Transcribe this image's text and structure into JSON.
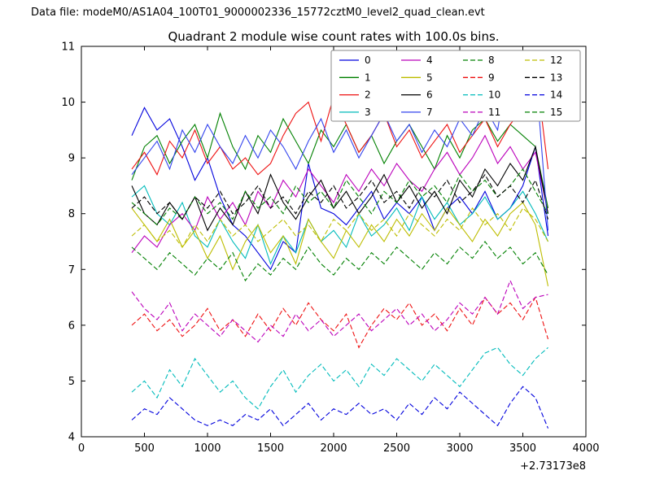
{
  "header": {
    "datafile_label": "Data file: modeM0/AS1A04_100T01_9000002336_15772cztM0_level2_quad_clean.evt"
  },
  "chart_data": {
    "type": "line",
    "title": "Quadrant 2 module wise count rates with 100.0s bins.",
    "xlabel": "",
    "ylabel": "",
    "xlim": [
      0,
      4000
    ],
    "ylim": [
      4,
      11
    ],
    "xticks": [
      0,
      500,
      1000,
      1500,
      2000,
      2500,
      3000,
      3500,
      4000
    ],
    "yticks": [
      4,
      5,
      6,
      7,
      8,
      9,
      10,
      11
    ],
    "x_offset_text": "+2.73173e8",
    "grid": false,
    "legend": {
      "location": "upper right",
      "columns": 4
    },
    "axis_color": "#000000",
    "x": [
      400,
      500,
      600,
      700,
      800,
      900,
      1000,
      1100,
      1200,
      1300,
      1400,
      1500,
      1600,
      1700,
      1800,
      1900,
      2000,
      2100,
      2200,
      2300,
      2400,
      2500,
      2600,
      2700,
      2800,
      2900,
      3000,
      3100,
      3200,
      3300,
      3400,
      3500,
      3600,
      3700
    ],
    "series": [
      {
        "name": "0",
        "color": "#0000dd",
        "style": "solid",
        "values": [
          9.4,
          9.9,
          9.5,
          9.7,
          9.2,
          8.6,
          9.0,
          8.3,
          7.8,
          7.6,
          7.3,
          7.0,
          7.5,
          7.3,
          8.9,
          8.1,
          8.0,
          7.8,
          8.1,
          8.4,
          7.9,
          8.2,
          8.0,
          8.3,
          7.7,
          8.1,
          8.3,
          8.0,
          8.4,
          7.9,
          8.1,
          8.5,
          9.2,
          7.6
        ]
      },
      {
        "name": "1",
        "color": "#008000",
        "style": "solid",
        "values": [
          8.6,
          9.2,
          9.4,
          8.9,
          9.3,
          9.6,
          9.0,
          9.8,
          9.2,
          8.8,
          9.4,
          9.1,
          9.7,
          9.3,
          8.9,
          9.5,
          9.2,
          9.6,
          9.1,
          9.4,
          8.9,
          9.3,
          9.6,
          9.2,
          8.8,
          9.4,
          9.0,
          9.5,
          9.7,
          9.3,
          9.6,
          9.4,
          9.2,
          8.1
        ]
      },
      {
        "name": "2",
        "color": "#ee1111",
        "style": "solid",
        "values": [
          8.8,
          9.1,
          8.7,
          9.3,
          9.0,
          9.5,
          8.9,
          9.2,
          8.8,
          9.0,
          8.7,
          8.9,
          9.4,
          9.8,
          10.0,
          9.3,
          10.1,
          9.6,
          9.1,
          9.4,
          9.8,
          9.2,
          9.5,
          9.0,
          9.3,
          9.6,
          9.1,
          9.4,
          9.7,
          9.2,
          9.6,
          9.9,
          10.65,
          8.8
        ]
      },
      {
        "name": "3",
        "color": "#00bbbb",
        "style": "solid",
        "values": [
          8.3,
          8.5,
          8.0,
          7.8,
          8.2,
          7.6,
          7.4,
          7.9,
          7.5,
          7.2,
          7.8,
          7.1,
          7.6,
          7.3,
          7.9,
          7.5,
          7.7,
          7.4,
          8.0,
          7.6,
          7.8,
          8.1,
          7.7,
          8.3,
          7.9,
          8.2,
          7.8,
          8.0,
          8.3,
          7.9,
          8.1,
          8.4,
          8.0,
          7.5
        ]
      },
      {
        "name": "4",
        "color": "#bb00bb",
        "style": "solid",
        "values": [
          7.3,
          7.6,
          7.4,
          7.8,
          8.0,
          7.7,
          8.3,
          7.9,
          8.2,
          7.8,
          8.4,
          8.1,
          8.6,
          8.3,
          8.8,
          8.5,
          8.2,
          8.7,
          8.4,
          8.8,
          8.5,
          8.9,
          8.6,
          8.4,
          8.8,
          9.1,
          8.7,
          9.0,
          9.4,
          8.9,
          9.2,
          8.8,
          9.1,
          8.0
        ]
      },
      {
        "name": "5",
        "color": "#bdbd00",
        "style": "solid",
        "values": [
          8.1,
          7.8,
          7.5,
          7.9,
          7.4,
          7.7,
          7.2,
          7.6,
          7.0,
          7.5,
          7.8,
          7.3,
          7.6,
          7.1,
          7.9,
          7.5,
          7.2,
          7.7,
          7.4,
          7.8,
          7.5,
          7.9,
          7.6,
          8.0,
          7.7,
          8.1,
          7.8,
          7.5,
          7.9,
          7.6,
          8.0,
          8.2,
          7.8,
          6.7
        ]
      },
      {
        "name": "6",
        "color": "#000000",
        "style": "solid",
        "values": [
          8.5,
          8.0,
          7.8,
          8.2,
          7.9,
          8.3,
          7.7,
          8.1,
          7.8,
          8.4,
          8.0,
          8.7,
          8.2,
          7.9,
          8.3,
          8.6,
          8.1,
          8.4,
          8.0,
          8.3,
          8.7,
          8.2,
          8.5,
          8.1,
          8.4,
          8.0,
          8.6,
          8.3,
          8.8,
          8.5,
          8.9,
          8.6,
          9.2,
          8.0
        ]
      },
      {
        "name": "7",
        "color": "#3344ee",
        "style": "solid",
        "values": [
          8.7,
          9.0,
          9.3,
          8.8,
          9.5,
          9.1,
          9.6,
          9.2,
          8.9,
          9.4,
          9.0,
          9.5,
          9.2,
          8.8,
          9.3,
          9.7,
          9.1,
          9.5,
          9.0,
          9.4,
          9.8,
          9.3,
          9.6,
          9.1,
          9.5,
          9.2,
          9.7,
          9.4,
          9.9,
          9.5,
          10.85,
          10.0,
          10.6,
          7.7
        ]
      },
      {
        "name": "8",
        "color": "#008000",
        "style": "dashed",
        "values": [
          8.2,
          8.0,
          7.8,
          8.1,
          7.9,
          8.3,
          8.0,
          8.2,
          7.9,
          8.4,
          8.1,
          8.3,
          8.0,
          8.5,
          8.2,
          8.4,
          8.1,
          8.6,
          8.3,
          8.0,
          8.4,
          8.2,
          8.6,
          8.3,
          8.5,
          8.2,
          8.7,
          8.4,
          8.6,
          8.3,
          8.5,
          8.8,
          8.4,
          8.0
        ]
      },
      {
        "name": "9",
        "color": "#ee1111",
        "style": "dashed",
        "values": [
          6.0,
          6.2,
          5.9,
          6.1,
          5.8,
          6.0,
          6.3,
          5.9,
          6.1,
          5.8,
          6.2,
          5.9,
          6.3,
          6.0,
          6.4,
          6.1,
          5.9,
          6.2,
          5.6,
          6.0,
          6.3,
          6.1,
          6.4,
          6.0,
          6.2,
          5.9,
          6.3,
          6.0,
          6.5,
          6.2,
          6.4,
          6.1,
          6.5,
          5.75
        ]
      },
      {
        "name": "10",
        "color": "#00bbbb",
        "style": "dashed",
        "values": [
          4.8,
          5.0,
          4.7,
          5.2,
          4.9,
          5.4,
          5.1,
          4.8,
          5.0,
          4.7,
          4.5,
          4.9,
          5.2,
          4.8,
          5.1,
          5.3,
          5.0,
          5.2,
          4.9,
          5.3,
          5.1,
          5.4,
          5.2,
          5.0,
          5.3,
          5.1,
          4.9,
          5.2,
          5.5,
          5.6,
          5.3,
          5.1,
          5.4,
          5.6
        ]
      },
      {
        "name": "11",
        "color": "#bb00bb",
        "style": "dashed",
        "values": [
          6.6,
          6.3,
          6.1,
          6.4,
          5.9,
          6.2,
          6.0,
          5.8,
          6.1,
          5.9,
          5.7,
          6.0,
          5.8,
          6.2,
          5.9,
          6.1,
          5.8,
          6.0,
          6.2,
          5.9,
          6.1,
          6.3,
          6.0,
          6.2,
          5.9,
          6.1,
          6.4,
          6.2,
          6.5,
          6.2,
          6.8,
          6.3,
          6.5,
          6.55
        ]
      },
      {
        "name": "12",
        "color": "#bdbd00",
        "style": "dashed",
        "values": [
          7.6,
          7.8,
          7.5,
          7.7,
          7.4,
          7.8,
          7.5,
          7.9,
          7.6,
          7.8,
          7.5,
          7.7,
          7.9,
          7.6,
          7.8,
          7.5,
          7.9,
          7.7,
          8.0,
          7.7,
          7.9,
          7.6,
          8.0,
          7.8,
          7.6,
          7.9,
          7.7,
          8.1,
          7.8,
          8.0,
          7.7,
          8.1,
          7.9,
          7.5
        ]
      },
      {
        "name": "13",
        "color": "#000000",
        "style": "dashed",
        "values": [
          8.1,
          8.3,
          8.0,
          8.2,
          7.9,
          8.3,
          8.1,
          8.4,
          8.0,
          8.2,
          8.5,
          8.1,
          8.3,
          8.0,
          8.4,
          8.2,
          8.5,
          8.1,
          8.3,
          8.6,
          8.2,
          8.4,
          8.1,
          8.5,
          8.3,
          8.6,
          8.2,
          8.4,
          8.7,
          8.3,
          8.5,
          8.2,
          8.6,
          7.9
        ]
      },
      {
        "name": "14",
        "color": "#0000dd",
        "style": "dashed",
        "values": [
          4.3,
          4.5,
          4.4,
          4.7,
          4.5,
          4.3,
          4.2,
          4.3,
          4.2,
          4.4,
          4.3,
          4.5,
          4.2,
          4.4,
          4.6,
          4.3,
          4.5,
          4.4,
          4.6,
          4.4,
          4.5,
          4.3,
          4.6,
          4.4,
          4.7,
          4.5,
          4.8,
          4.6,
          4.4,
          4.2,
          4.6,
          4.9,
          4.7,
          4.15
        ]
      },
      {
        "name": "15",
        "color": "#008000",
        "style": "dashed",
        "values": [
          7.4,
          7.2,
          7.0,
          7.3,
          7.1,
          6.9,
          7.2,
          7.0,
          7.3,
          6.8,
          7.1,
          6.9,
          7.2,
          7.0,
          7.4,
          7.1,
          6.9,
          7.2,
          7.0,
          7.3,
          7.1,
          7.4,
          7.2,
          7.0,
          7.3,
          7.1,
          7.4,
          7.2,
          7.5,
          7.2,
          7.4,
          7.1,
          7.3,
          6.9
        ]
      }
    ]
  }
}
